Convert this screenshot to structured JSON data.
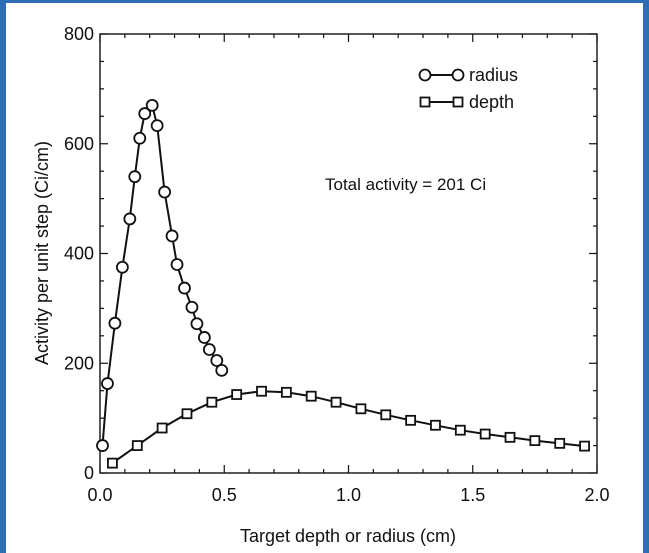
{
  "chart_data": {
    "type": "line",
    "xlabel": "Target depth or radius (cm)",
    "ylabel": "Activity per unit step (Ci/cm)",
    "xlim": [
      0.0,
      2.0
    ],
    "ylim": [
      0,
      800
    ],
    "x_ticks": [
      "0.0",
      "0.5",
      "1.0",
      "1.5",
      "2.0"
    ],
    "y_ticks": [
      "0",
      "200",
      "400",
      "600",
      "800"
    ],
    "x_tick_values": [
      0.0,
      0.5,
      1.0,
      1.5,
      2.0
    ],
    "y_tick_values": [
      0,
      200,
      400,
      600,
      800
    ],
    "grid": false,
    "legend_position": "top-right",
    "annotation": "Total activity = 201 Ci",
    "series": [
      {
        "name": "radius",
        "marker": "circle",
        "color": "#111111",
        "points": [
          [
            0.01,
            50
          ],
          [
            0.03,
            163
          ],
          [
            0.06,
            273
          ],
          [
            0.09,
            375
          ],
          [
            0.12,
            463
          ],
          [
            0.14,
            540
          ],
          [
            0.16,
            610
          ],
          [
            0.18,
            655
          ],
          [
            0.21,
            670
          ],
          [
            0.23,
            633
          ],
          [
            0.26,
            512
          ],
          [
            0.29,
            432
          ],
          [
            0.31,
            380
          ],
          [
            0.34,
            337
          ],
          [
            0.37,
            302
          ],
          [
            0.39,
            272
          ],
          [
            0.42,
            247
          ],
          [
            0.44,
            225
          ],
          [
            0.47,
            205
          ],
          [
            0.49,
            187
          ]
        ]
      },
      {
        "name": "depth",
        "marker": "square",
        "color": "#111111",
        "points": [
          [
            0.05,
            18
          ],
          [
            0.15,
            50
          ],
          [
            0.25,
            82
          ],
          [
            0.35,
            108
          ],
          [
            0.45,
            129
          ],
          [
            0.55,
            143
          ],
          [
            0.65,
            149
          ],
          [
            0.75,
            147
          ],
          [
            0.85,
            140
          ],
          [
            0.95,
            129
          ],
          [
            1.05,
            117
          ],
          [
            1.15,
            106
          ],
          [
            1.25,
            96
          ],
          [
            1.35,
            87
          ],
          [
            1.45,
            78
          ],
          [
            1.55,
            71
          ],
          [
            1.65,
            65
          ],
          [
            1.75,
            59
          ],
          [
            1.85,
            54
          ],
          [
            1.95,
            49
          ]
        ]
      }
    ]
  }
}
